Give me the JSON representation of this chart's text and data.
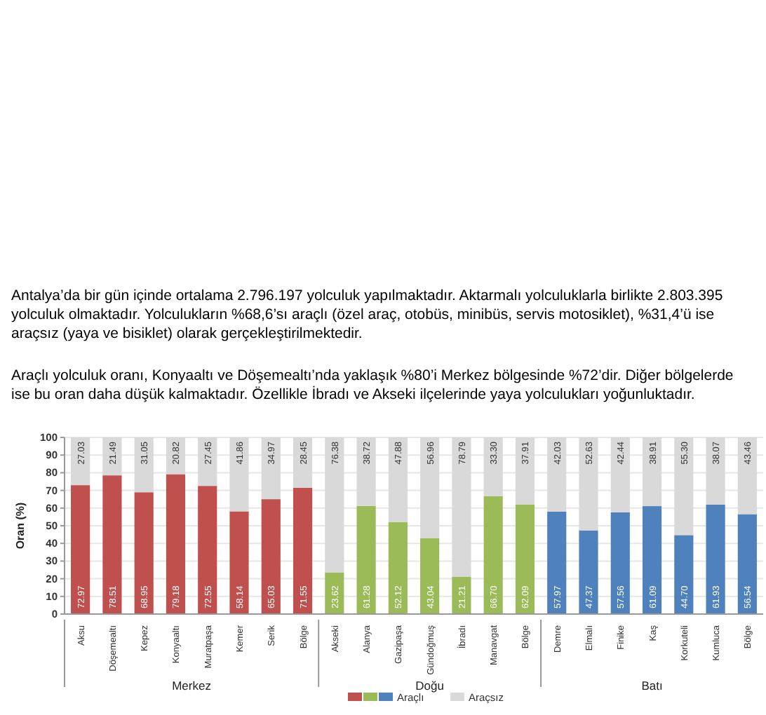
{
  "chart_data": {
    "type": "bar",
    "stacked": true,
    "title": "Antalya’da bir gün içinde ortalama 2.796.197 yolculuk yapılmaktadır. Aktarmalı yolculuklarla birlikte 2.803.395 yolculuk olmaktadır. Yolculukların %68,6’sı araçlı (özel araç, otobüs, minibüs, servis motosiklet), %31,4’ü ise araçsız (yaya ve bisiklet) olarak gerçekleştirilmektedir.",
    "subtitle": "Araçlı yolculuk oranı, Konyaaltı ve Döşemealtı’nda yaklaşık %80’i Merkez bölgesinde %72’dir. Diğer bölgelerde ise bu oran daha düşük kalmaktadır. Özellikle İbradı ve Akseki ilçelerinde yaya yolculukları yoğunluktadır.",
    "ylabel": "Oran (%)",
    "annotations": [
      "Merkez",
      "Doğu",
      "Batı"
    ],
    "categories": [
      "Aksu",
      "Döşemealtı",
      "Kepez",
      "Konyaaltı",
      "Muratpaşa",
      "Kemer",
      "Serik",
      "Bölge",
      "Akseki",
      "Alanya",
      "Gazipaşa",
      "Gündoğmuş",
      "İbradı",
      "Manavgat",
      "Bölge",
      "Demre",
      "Elmalı",
      "Finike",
      "Kaş",
      "Korkuteli",
      "Kumluca",
      "Bölge"
    ],
    "series": [
      {
        "name": "Araçlı",
        "colors": [
          "#c0504d",
          "#c0504d",
          "#c0504d",
          "#c0504d",
          "#c0504d",
          "#c0504d",
          "#c0504d",
          "#c0504d",
          "#9bbb59",
          "#9bbb59",
          "#9bbb59",
          "#9bbb59",
          "#9bbb59",
          "#9bbb59",
          "#9bbb59",
          "#4f81bd",
          "#4f81bd",
          "#4f81bd",
          "#4f81bd",
          "#4f81bd",
          "#4f81bd",
          "#4f81bd"
        ],
        "values": [
          72.97,
          78.51,
          68.95,
          79.18,
          72.55,
          58.14,
          65.03,
          71.55,
          23.62,
          61.28,
          52.12,
          43.04,
          21.21,
          66.7,
          62.09,
          57.97,
          47.37,
          57.56,
          61.09,
          44.7,
          61.93,
          56.54
        ],
        "value_labels": [
          "72.97",
          "78.51",
          "68.95",
          "79.18",
          "72.55",
          "58.14",
          "65.03",
          "71.55",
          "23.62",
          "61.28",
          "52.12",
          "43.04",
          "21.21",
          "66.70",
          "62.09",
          "57.97",
          "47.37",
          "57.56",
          "61.09",
          "44.70",
          "61.93",
          "56.54"
        ]
      },
      {
        "name": "Araçsız",
        "color": "#d9d9d9",
        "values": [
          27.03,
          21.49,
          31.05,
          20.82,
          27.45,
          41.86,
          34.97,
          28.45,
          76.38,
          38.72,
          47.88,
          56.96,
          78.79,
          33.3,
          37.91,
          42.03,
          52.63,
          42.44,
          38.91,
          55.3,
          38.07,
          43.46
        ],
        "value_labels": [
          "27.03",
          "21.49",
          "31.05",
          "20.82",
          "27.45",
          "41.86",
          "34.97",
          "28.45",
          "76.38",
          "38.72",
          "47.88",
          "56.96",
          "78.79",
          "33.30",
          "37.91",
          "42.03",
          "52.63",
          "42.44",
          "38.91",
          "55.30",
          "38.07",
          "43.46"
        ]
      }
    ],
    "ylim": [
      0,
      100
    ],
    "yticks": [
      0,
      10,
      20,
      30,
      40,
      50,
      60,
      70,
      80,
      90,
      100
    ],
    "grid": "y",
    "legend": "bottom"
  }
}
